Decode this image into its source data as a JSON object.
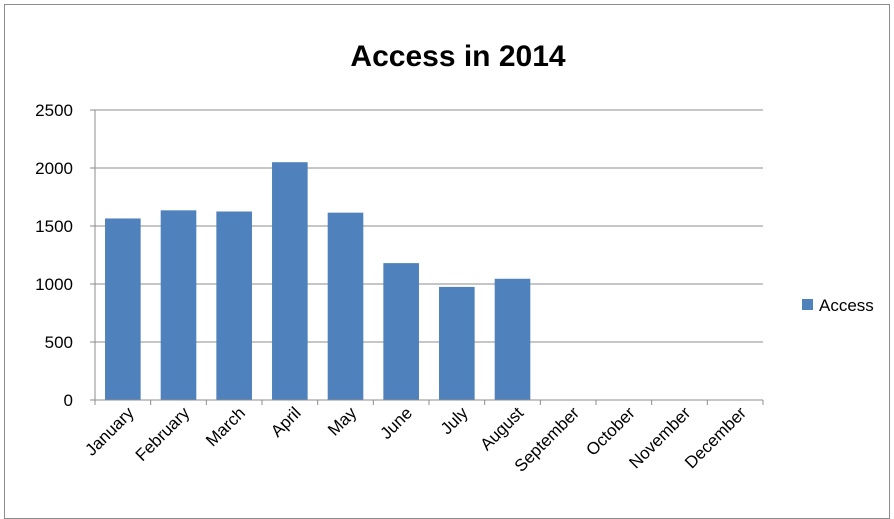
{
  "chart_data": {
    "type": "bar",
    "title": "Access in 2014",
    "xlabel": "",
    "ylabel": "",
    "categories": [
      "January",
      "February",
      "March",
      "April",
      "May",
      "June",
      "July",
      "August",
      "September",
      "October",
      "November",
      "December"
    ],
    "series": [
      {
        "name": "Access",
        "values": [
          1565,
          1635,
          1625,
          2050,
          1615,
          1180,
          975,
          1045,
          null,
          null,
          null,
          null
        ],
        "color": "#4F81BD"
      }
    ],
    "ylim": [
      0,
      2500
    ],
    "yticks": [
      0,
      500,
      1000,
      1500,
      2000,
      2500
    ],
    "ytick_labels": [
      "0",
      "500",
      "1000",
      "1500",
      "2000",
      "2500"
    ],
    "grid": true,
    "legend_position": "right",
    "colors": {
      "gridline": "#8c8c8c",
      "axis": "#8c8c8c",
      "frame": "#8c8c8c"
    }
  }
}
